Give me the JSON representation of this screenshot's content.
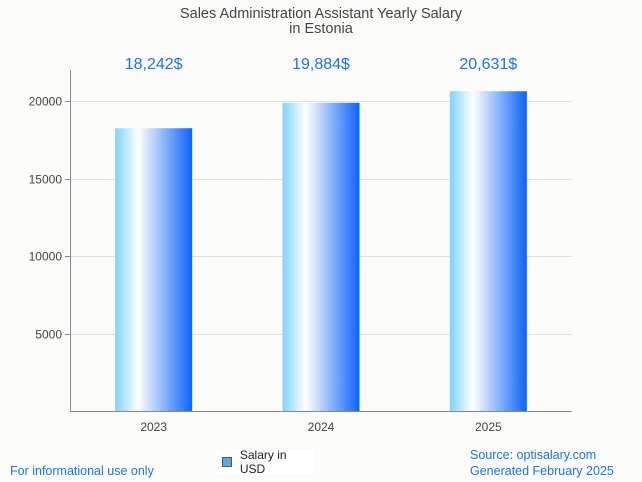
{
  "chart_data": {
    "type": "bar",
    "title_lines": [
      "Sales Administration Assistant Yearly Salary",
      "in Estonia"
    ],
    "categories": [
      "2023",
      "2024",
      "2025"
    ],
    "values": [
      18242,
      19884,
      20631
    ],
    "value_labels": [
      "18,242$",
      "19,884$",
      "20,631$"
    ],
    "yticks": [
      5000,
      10000,
      15000,
      20000
    ],
    "ylim": [
      0,
      22000
    ],
    "xlabel": "",
    "ylabel": "",
    "grid": true,
    "legend": {
      "label": "Salary in USD",
      "placement": "bottom-center",
      "color": "#5aa6ea"
    },
    "bar_gradient": [
      "#7fd3ff",
      "#ffffff",
      "#0a63ff"
    ]
  },
  "footer": {
    "disclaimer": "For informational use only",
    "source": "Source: optisalary.com",
    "generated": "Generated February 2025"
  }
}
